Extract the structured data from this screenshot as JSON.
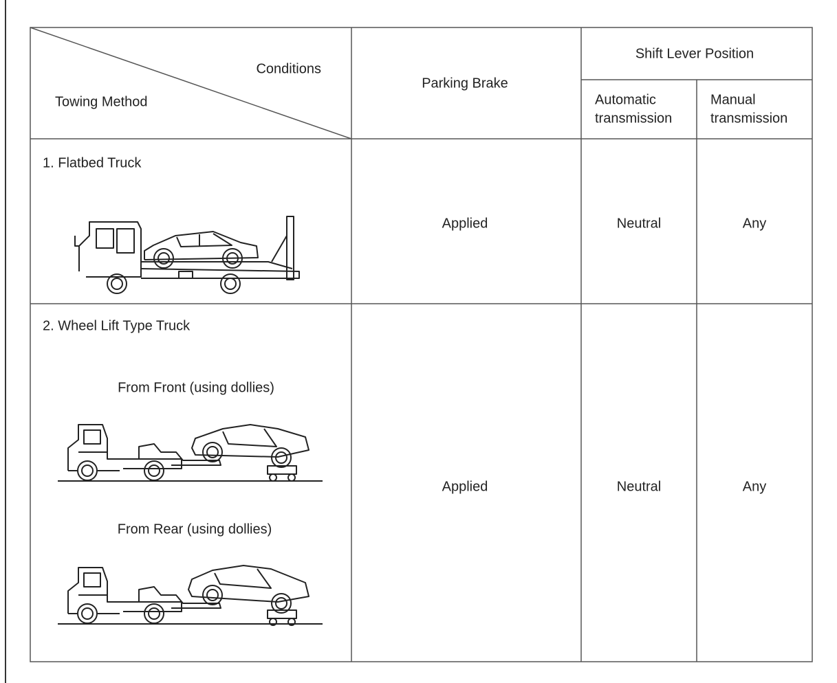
{
  "table": {
    "header": {
      "diagonal_top": "Conditions",
      "diagonal_bottom": "Towing Method",
      "parking_brake": "Parking Brake",
      "shift_lever": "Shift Lever Position",
      "automatic": [
        "Automatic",
        "transmission"
      ],
      "manual": [
        "Manual",
        "transmission"
      ]
    },
    "rows": [
      {
        "method": "1. Flatbed Truck",
        "parking_brake": "Applied",
        "automatic": "Neutral",
        "manual": "Any"
      },
      {
        "method": "2. Wheel Lift Type Truck",
        "variants": [
          "From Front (using dollies)",
          "From Rear (using dollies)"
        ],
        "parking_brake": "Applied",
        "automatic": "Neutral",
        "manual": "Any"
      }
    ]
  }
}
